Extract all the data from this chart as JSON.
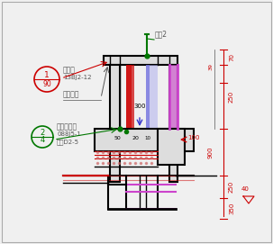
{
  "bg_color": "#f0f0f0",
  "annotations": {
    "nver_qiang": "女儿墙",
    "nver_qiang_ref": "13BJ2-12",
    "lv_ban": "铝板压顶",
    "fang_shui": "防水收头详",
    "fang_shui_ref": "088J5-1",
    "ping_wu": "平屋D2-5",
    "lan_gan": "栏杆2",
    "dim_50": "50",
    "dim_20": "20",
    "dim_10": "10",
    "dim_300": "300",
    "dim_100": "100",
    "dim_70": "70",
    "dim_39": "39",
    "dim_250_top": "250",
    "dim_900": "900",
    "dim_40": "40",
    "dim_250_bot": "250",
    "dim_350": "350"
  },
  "colors": {
    "black": "#000000",
    "red": "#cc0000",
    "green": "#007700",
    "blue": "#3333cc",
    "magenta": "#cc00cc",
    "gray": "#999999",
    "light_gray": "#cccccc",
    "dark_gray": "#555555",
    "white": "#ffffff",
    "bg": "#e8e8e8",
    "paper": "#f0f0f0"
  }
}
